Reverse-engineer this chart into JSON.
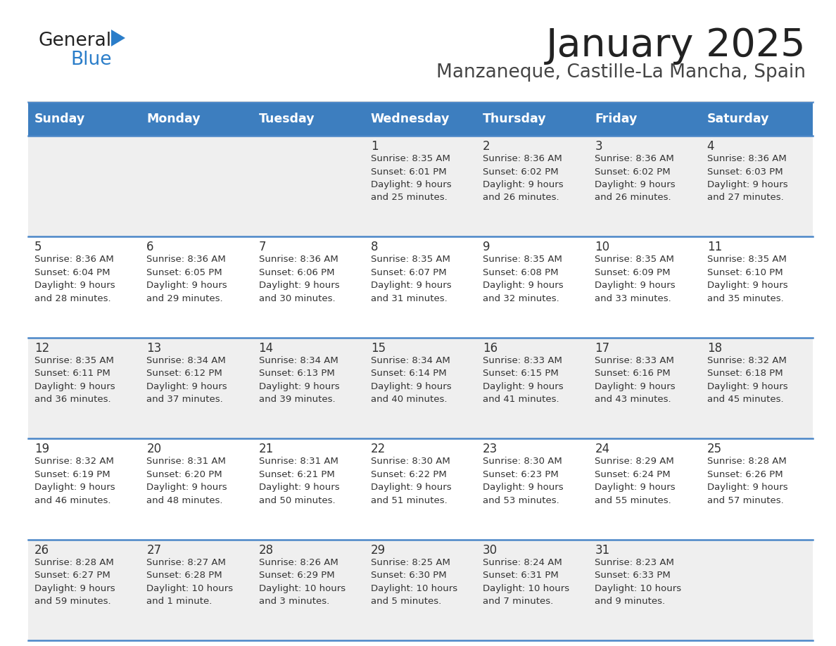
{
  "title": "January 2025",
  "subtitle": "Manzaneque, Castille-La Mancha, Spain",
  "days_of_week": [
    "Sunday",
    "Monday",
    "Tuesday",
    "Wednesday",
    "Thursday",
    "Friday",
    "Saturday"
  ],
  "header_bg": "#3d7ebf",
  "header_text_color": "#ffffff",
  "row_bg_even": "#efefef",
  "row_bg_odd": "#ffffff",
  "border_color": "#4a86c8",
  "separator_color": "#4a86c8",
  "text_color": "#333333",
  "title_color": "#222222",
  "subtitle_color": "#444444",
  "logo_general_color": "#222222",
  "logo_blue_color": "#2a7dc9",
  "logo_triangle_color": "#2a7dc9",
  "calendar": [
    [
      {
        "day": "",
        "sunrise": "",
        "sunset": "",
        "daylight": ""
      },
      {
        "day": "",
        "sunrise": "",
        "sunset": "",
        "daylight": ""
      },
      {
        "day": "",
        "sunrise": "",
        "sunset": "",
        "daylight": ""
      },
      {
        "day": "1",
        "sunrise": "8:35 AM",
        "sunset": "6:01 PM",
        "daylight": "9 hours and 25 minutes."
      },
      {
        "day": "2",
        "sunrise": "8:36 AM",
        "sunset": "6:02 PM",
        "daylight": "9 hours and 26 minutes."
      },
      {
        "day": "3",
        "sunrise": "8:36 AM",
        "sunset": "6:02 PM",
        "daylight": "9 hours and 26 minutes."
      },
      {
        "day": "4",
        "sunrise": "8:36 AM",
        "sunset": "6:03 PM",
        "daylight": "9 hours and 27 minutes."
      }
    ],
    [
      {
        "day": "5",
        "sunrise": "8:36 AM",
        "sunset": "6:04 PM",
        "daylight": "9 hours and 28 minutes."
      },
      {
        "day": "6",
        "sunrise": "8:36 AM",
        "sunset": "6:05 PM",
        "daylight": "9 hours and 29 minutes."
      },
      {
        "day": "7",
        "sunrise": "8:36 AM",
        "sunset": "6:06 PM",
        "daylight": "9 hours and 30 minutes."
      },
      {
        "day": "8",
        "sunrise": "8:35 AM",
        "sunset": "6:07 PM",
        "daylight": "9 hours and 31 minutes."
      },
      {
        "day": "9",
        "sunrise": "8:35 AM",
        "sunset": "6:08 PM",
        "daylight": "9 hours and 32 minutes."
      },
      {
        "day": "10",
        "sunrise": "8:35 AM",
        "sunset": "6:09 PM",
        "daylight": "9 hours and 33 minutes."
      },
      {
        "day": "11",
        "sunrise": "8:35 AM",
        "sunset": "6:10 PM",
        "daylight": "9 hours and 35 minutes."
      }
    ],
    [
      {
        "day": "12",
        "sunrise": "8:35 AM",
        "sunset": "6:11 PM",
        "daylight": "9 hours and 36 minutes."
      },
      {
        "day": "13",
        "sunrise": "8:34 AM",
        "sunset": "6:12 PM",
        "daylight": "9 hours and 37 minutes."
      },
      {
        "day": "14",
        "sunrise": "8:34 AM",
        "sunset": "6:13 PM",
        "daylight": "9 hours and 39 minutes."
      },
      {
        "day": "15",
        "sunrise": "8:34 AM",
        "sunset": "6:14 PM",
        "daylight": "9 hours and 40 minutes."
      },
      {
        "day": "16",
        "sunrise": "8:33 AM",
        "sunset": "6:15 PM",
        "daylight": "9 hours and 41 minutes."
      },
      {
        "day": "17",
        "sunrise": "8:33 AM",
        "sunset": "6:16 PM",
        "daylight": "9 hours and 43 minutes."
      },
      {
        "day": "18",
        "sunrise": "8:32 AM",
        "sunset": "6:18 PM",
        "daylight": "9 hours and 45 minutes."
      }
    ],
    [
      {
        "day": "19",
        "sunrise": "8:32 AM",
        "sunset": "6:19 PM",
        "daylight": "9 hours and 46 minutes."
      },
      {
        "day": "20",
        "sunrise": "8:31 AM",
        "sunset": "6:20 PM",
        "daylight": "9 hours and 48 minutes."
      },
      {
        "day": "21",
        "sunrise": "8:31 AM",
        "sunset": "6:21 PM",
        "daylight": "9 hours and 50 minutes."
      },
      {
        "day": "22",
        "sunrise": "8:30 AM",
        "sunset": "6:22 PM",
        "daylight": "9 hours and 51 minutes."
      },
      {
        "day": "23",
        "sunrise": "8:30 AM",
        "sunset": "6:23 PM",
        "daylight": "9 hours and 53 minutes."
      },
      {
        "day": "24",
        "sunrise": "8:29 AM",
        "sunset": "6:24 PM",
        "daylight": "9 hours and 55 minutes."
      },
      {
        "day": "25",
        "sunrise": "8:28 AM",
        "sunset": "6:26 PM",
        "daylight": "9 hours and 57 minutes."
      }
    ],
    [
      {
        "day": "26",
        "sunrise": "8:28 AM",
        "sunset": "6:27 PM",
        "daylight": "9 hours and 59 minutes."
      },
      {
        "day": "27",
        "sunrise": "8:27 AM",
        "sunset": "6:28 PM",
        "daylight": "10 hours and 1 minute."
      },
      {
        "day": "28",
        "sunrise": "8:26 AM",
        "sunset": "6:29 PM",
        "daylight": "10 hours and 3 minutes."
      },
      {
        "day": "29",
        "sunrise": "8:25 AM",
        "sunset": "6:30 PM",
        "daylight": "10 hours and 5 minutes."
      },
      {
        "day": "30",
        "sunrise": "8:24 AM",
        "sunset": "6:31 PM",
        "daylight": "10 hours and 7 minutes."
      },
      {
        "day": "31",
        "sunrise": "8:23 AM",
        "sunset": "6:33 PM",
        "daylight": "10 hours and 9 minutes."
      },
      {
        "day": "",
        "sunrise": "",
        "sunset": "",
        "daylight": ""
      }
    ]
  ]
}
